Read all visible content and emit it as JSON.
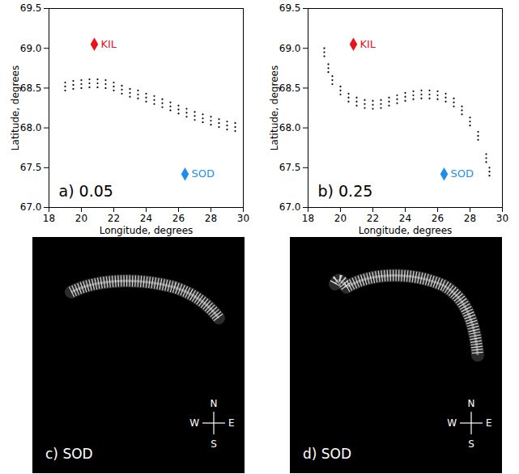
{
  "chart_data": [
    {
      "type": "scatter",
      "x_label": "Longitude, degrees",
      "y_label": "Latitude, degrees",
      "annotations": [
        {
          "text": "a) 0.05"
        }
      ],
      "xlim": [
        18,
        30
      ],
      "xticks": [
        18,
        20,
        22,
        24,
        26,
        28,
        30
      ],
      "ylim": [
        67.0,
        69.5
      ],
      "yticks": [
        {
          "value": 67.0,
          "label": "67.0"
        },
        {
          "value": 67.5,
          "label": "67.5"
        },
        {
          "value": 68.0,
          "label": "68.0"
        },
        {
          "value": 68.5,
          "label": "68.5"
        },
        {
          "value": 69.0,
          "label": "69.0"
        },
        {
          "value": 69.5,
          "label": "69.5"
        }
      ],
      "series": [
        {
          "color": "#000000",
          "marker": "dot",
          "x": [
            19,
            19.5,
            20,
            20.5,
            21,
            21.5,
            22,
            22.5,
            23,
            23.5,
            24,
            24.5,
            25,
            25.5,
            26,
            26.5,
            27,
            27.5,
            28,
            28.5,
            29,
            29.5,
            19,
            19.5,
            20,
            20.5,
            21,
            21.5,
            22,
            22.5,
            23,
            23.5,
            24,
            24.5,
            25,
            25.5,
            26,
            26.5,
            27,
            27.5,
            28,
            28.5,
            29,
            29.5,
            19,
            19.5,
            20,
            20.5,
            21,
            21.5,
            22,
            22.5,
            23,
            23.5,
            24,
            24.5,
            25,
            25.5,
            26,
            26.5,
            27,
            27.5,
            28,
            28.5,
            29,
            29.5
          ],
          "y": [
            68.52,
            68.54,
            68.55,
            68.56,
            68.56,
            68.55,
            68.52,
            68.48,
            68.44,
            68.42,
            68.38,
            68.35,
            68.31,
            68.27,
            68.23,
            68.19,
            68.15,
            68.12,
            68.09,
            68.06,
            68.03,
            68.01,
            68.57,
            68.59,
            68.6,
            68.61,
            68.61,
            68.6,
            68.57,
            68.53,
            68.49,
            68.47,
            68.43,
            68.4,
            68.36,
            68.32,
            68.28,
            68.24,
            68.2,
            68.17,
            68.14,
            68.11,
            68.08,
            68.06,
            68.47,
            68.49,
            68.5,
            68.51,
            68.51,
            68.5,
            68.47,
            68.43,
            68.39,
            68.37,
            68.33,
            68.3,
            68.26,
            68.22,
            68.18,
            68.14,
            68.1,
            68.07,
            68.04,
            68.01,
            67.98,
            67.96
          ]
        },
        {
          "name": "KIL",
          "color": "#e8141b",
          "marker": "diamond",
          "data_labels": true,
          "x": [
            20.8
          ],
          "y": [
            69.05
          ]
        },
        {
          "name": "SOD",
          "color": "#1e8fe8",
          "marker": "diamond",
          "data_labels": true,
          "x": [
            26.4
          ],
          "y": [
            67.42
          ]
        }
      ]
    },
    {
      "type": "scatter",
      "x_label": "Longitude, degrees",
      "y_label": "Latitude, degrees",
      "annotations": [
        {
          "text": "b) 0.25"
        }
      ],
      "xlim": [
        18,
        30
      ],
      "xticks": [
        18,
        20,
        22,
        24,
        26,
        28,
        30
      ],
      "ylim": [
        67.0,
        69.5
      ],
      "yticks": [
        {
          "value": 67.0,
          "label": "67.0"
        },
        {
          "value": 67.5,
          "label": "67.5"
        },
        {
          "value": 68.0,
          "label": "68.0"
        },
        {
          "value": 68.5,
          "label": "68.5"
        },
        {
          "value": 69.0,
          "label": "69.0"
        },
        {
          "value": 69.5,
          "label": "69.5"
        }
      ],
      "series": [
        {
          "color": "#000000",
          "marker": "dot",
          "x": [
            19,
            19.25,
            19.5,
            20,
            20.5,
            21,
            21.5,
            22,
            22.5,
            23,
            23.5,
            24,
            24.5,
            25,
            25.5,
            26,
            26.5,
            27,
            27.5,
            28,
            28.5,
            29,
            29.2,
            19,
            19.25,
            19.5,
            20,
            20.5,
            21,
            21.5,
            22,
            22.5,
            23,
            23.5,
            24,
            24.5,
            25,
            25.5,
            26,
            26.5,
            27,
            27.5,
            28,
            28.5,
            29,
            29.2,
            19,
            19.25,
            19.5,
            20,
            20.5,
            21,
            21.5,
            22,
            22.5,
            23,
            23.5,
            24,
            24.5,
            25,
            25.5,
            26,
            26.5,
            27,
            27.5,
            28,
            28.5,
            29,
            29.2
          ],
          "y": [
            68.95,
            68.75,
            68.6,
            68.47,
            68.38,
            68.33,
            68.3,
            68.29,
            68.3,
            68.33,
            68.36,
            68.39,
            68.41,
            68.42,
            68.42,
            68.41,
            68.38,
            68.32,
            68.22,
            68.08,
            67.9,
            67.62,
            67.45,
            69.0,
            68.8,
            68.65,
            68.52,
            68.43,
            68.38,
            68.35,
            68.34,
            68.35,
            68.38,
            68.41,
            68.44,
            68.46,
            68.47,
            68.47,
            68.46,
            68.43,
            68.37,
            68.27,
            68.13,
            67.95,
            67.67,
            67.5,
            68.9,
            68.7,
            68.55,
            68.42,
            68.33,
            68.28,
            68.25,
            68.24,
            68.25,
            68.28,
            68.31,
            68.34,
            68.36,
            68.37,
            68.37,
            68.36,
            68.33,
            68.27,
            68.17,
            68.03,
            67.85,
            67.57,
            67.4
          ]
        },
        {
          "name": "KIL",
          "color": "#e8141b",
          "marker": "diamond",
          "data_labels": true,
          "x": [
            20.8
          ],
          "y": [
            69.05
          ]
        },
        {
          "name": "SOD",
          "color": "#1e8fe8",
          "marker": "diamond",
          "data_labels": true,
          "x": [
            26.4
          ],
          "y": [
            67.42
          ]
        }
      ]
    }
  ],
  "images": [
    {
      "label": "c) SOD",
      "compass": {
        "north": "N",
        "south": "S",
        "west": "W",
        "east": "E"
      }
    },
    {
      "label": "d) SOD",
      "compass": {
        "north": "N",
        "south": "S",
        "west": "W",
        "east": "E"
      }
    }
  ]
}
